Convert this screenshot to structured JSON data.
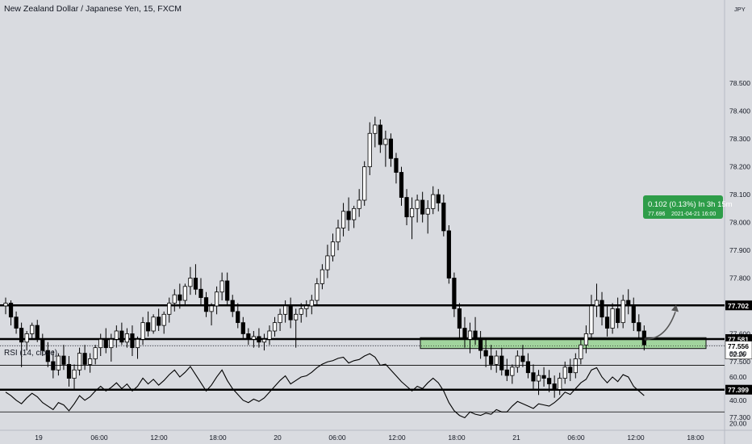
{
  "header": {
    "title": "New Zealand Dollar / Japanese Yen, 15, FXCM",
    "currency": "JPY"
  },
  "rsi": {
    "title": "RSI (14, close)",
    "ticks": [
      "80.00",
      "60.00",
      "40.00",
      "20.00"
    ]
  },
  "price_axis": {
    "ticks": [
      "78.500",
      "78.400",
      "78.300",
      "78.200",
      "78.100",
      "78.000",
      "77.900",
      "77.800",
      "77.600",
      "77.500",
      "77.300"
    ]
  },
  "time_axis": {
    "ticks": [
      "19",
      "06:00",
      "12:00",
      "18:00",
      "20",
      "06:00",
      "12:00",
      "18:00",
      "21",
      "06:00",
      "12:00",
      "18:00"
    ]
  },
  "levels": [
    {
      "name": "resistance-level",
      "value": 77.702,
      "label": "77.702"
    },
    {
      "name": "mid-level",
      "value": 77.581,
      "label": "77.581"
    },
    {
      "name": "support-level",
      "value": 77.399,
      "label": "77.399"
    }
  ],
  "current_price": {
    "value": 77.556,
    "label": "77.556",
    "countdown": "02:26"
  },
  "zone": {
    "from": 77.547,
    "to": 77.586
  },
  "projection": {
    "line1": "0.102 (0.13%) In 3h 15m",
    "line2a": "77.696",
    "line2b": "2021-04-21  16:00",
    "color": "#2e9d49"
  },
  "colors": {
    "background": "#d9dbe0",
    "candle_up": "#ffffff",
    "candle_down": "#000000",
    "zone_fill": "#9fd49a",
    "level_line": "#000000"
  },
  "chart_data": {
    "type": "candlestick",
    "interval": "15",
    "ylim": [
      77.26,
      78.52
    ],
    "rsi_ylim": [
      15,
      85
    ],
    "rsi_bands": [
      70,
      30
    ],
    "x_ticks": [
      "19",
      "06:00",
      "12:00",
      "18:00",
      "20",
      "06:00",
      "12:00",
      "18:00",
      "21",
      "06:00",
      "12:00",
      "18:00"
    ],
    "series": [
      {
        "values": [
          [
            77.7,
            77.73,
            77.67,
            77.71
          ],
          [
            77.71,
            77.72,
            77.63,
            77.66
          ],
          [
            77.66,
            77.68,
            77.6,
            77.62
          ],
          [
            77.62,
            77.64,
            77.48,
            77.57
          ],
          [
            77.57,
            77.61,
            77.54,
            77.6
          ],
          [
            77.6,
            77.64,
            77.58,
            77.63
          ],
          [
            77.63,
            77.65,
            77.57,
            77.58
          ],
          [
            77.58,
            77.6,
            77.52,
            77.54
          ],
          [
            77.54,
            77.57,
            77.48,
            77.5
          ],
          [
            77.5,
            77.54,
            77.44,
            77.47
          ],
          [
            77.47,
            77.53,
            77.45,
            77.52
          ],
          [
            77.52,
            77.56,
            77.47,
            77.49
          ],
          [
            77.49,
            77.52,
            77.41,
            77.44
          ],
          [
            77.44,
            77.49,
            77.4,
            77.47
          ],
          [
            77.47,
            77.55,
            77.45,
            77.53
          ],
          [
            77.53,
            77.56,
            77.47,
            77.49
          ],
          [
            77.49,
            77.53,
            77.46,
            77.51
          ],
          [
            77.51,
            77.56,
            77.49,
            77.55
          ],
          [
            77.55,
            77.6,
            77.52,
            77.58
          ],
          [
            77.58,
            77.62,
            77.53,
            77.55
          ],
          [
            77.55,
            77.6,
            77.5,
            77.58
          ],
          [
            77.58,
            77.63,
            77.55,
            77.61
          ],
          [
            77.61,
            77.64,
            77.56,
            77.57
          ],
          [
            77.57,
            77.62,
            77.55,
            77.6
          ],
          [
            77.6,
            77.63,
            77.52,
            77.55
          ],
          [
            77.55,
            77.59,
            77.51,
            77.58
          ],
          [
            77.58,
            77.66,
            77.56,
            77.64
          ],
          [
            77.64,
            77.68,
            77.59,
            77.61
          ],
          [
            77.61,
            77.67,
            77.6,
            77.66
          ],
          [
            77.66,
            77.69,
            77.61,
            77.63
          ],
          [
            77.63,
            77.68,
            77.6,
            77.67
          ],
          [
            77.67,
            77.73,
            77.64,
            77.71
          ],
          [
            77.71,
            77.76,
            77.68,
            77.74
          ],
          [
            77.74,
            77.78,
            77.69,
            77.72
          ],
          [
            77.72,
            77.78,
            77.7,
            77.77
          ],
          [
            77.77,
            77.84,
            77.74,
            77.8
          ],
          [
            77.8,
            77.85,
            77.74,
            77.76
          ],
          [
            77.76,
            77.8,
            77.7,
            77.73
          ],
          [
            77.73,
            77.75,
            77.66,
            77.68
          ],
          [
            77.68,
            77.71,
            77.63,
            77.7
          ],
          [
            77.7,
            77.77,
            77.67,
            77.75
          ],
          [
            77.75,
            77.82,
            77.72,
            77.79
          ],
          [
            77.79,
            77.82,
            77.7,
            77.72
          ],
          [
            77.72,
            77.74,
            77.66,
            77.68
          ],
          [
            77.68,
            77.71,
            77.62,
            77.64
          ],
          [
            77.64,
            77.66,
            77.58,
            77.6
          ],
          [
            77.6,
            77.62,
            77.56,
            77.58
          ],
          [
            77.58,
            77.61,
            77.55,
            77.59
          ],
          [
            77.59,
            77.62,
            77.55,
            77.57
          ],
          [
            77.57,
            77.6,
            77.54,
            77.58
          ],
          [
            77.58,
            77.63,
            77.56,
            77.61
          ],
          [
            77.61,
            77.66,
            77.59,
            77.64
          ],
          [
            77.64,
            77.69,
            77.61,
            77.67
          ],
          [
            77.67,
            77.72,
            77.64,
            77.7
          ],
          [
            77.7,
            77.73,
            77.62,
            77.65
          ],
          [
            77.65,
            77.69,
            77.55,
            77.67
          ],
          [
            77.67,
            77.71,
            77.64,
            77.69
          ],
          [
            77.69,
            77.72,
            77.66,
            77.7
          ],
          [
            77.7,
            77.74,
            77.67,
            77.72
          ],
          [
            77.72,
            77.8,
            77.7,
            77.78
          ],
          [
            77.78,
            77.85,
            77.76,
            77.83
          ],
          [
            77.83,
            77.92,
            77.8,
            77.88
          ],
          [
            77.88,
            77.96,
            77.86,
            77.93
          ],
          [
            77.93,
            78.01,
            77.9,
            77.98
          ],
          [
            77.98,
            78.07,
            77.95,
            78.04
          ],
          [
            78.04,
            78.09,
            77.97,
            78.01
          ],
          [
            78.01,
            78.06,
            77.98,
            78.05
          ],
          [
            78.05,
            78.12,
            78.02,
            78.08
          ],
          [
            78.08,
            78.22,
            78.06,
            78.2
          ],
          [
            78.2,
            78.36,
            78.17,
            78.32
          ],
          [
            78.32,
            78.38,
            78.27,
            78.35
          ],
          [
            78.35,
            78.37,
            78.25,
            78.28
          ],
          [
            78.28,
            78.33,
            78.2,
            78.3
          ],
          [
            78.3,
            78.32,
            78.2,
            78.23
          ],
          [
            78.23,
            78.25,
            78.14,
            78.18
          ],
          [
            78.18,
            78.2,
            78.06,
            78.09
          ],
          [
            78.09,
            78.12,
            77.99,
            78.02
          ],
          [
            78.02,
            78.09,
            77.94,
            78.05
          ],
          [
            78.05,
            78.1,
            78.0,
            78.08
          ],
          [
            78.08,
            78.11,
            78.0,
            78.03
          ],
          [
            78.03,
            78.08,
            77.96,
            78.05
          ],
          [
            78.05,
            78.13,
            78.03,
            78.1
          ],
          [
            78.1,
            78.12,
            78.04,
            78.07
          ],
          [
            78.07,
            78.1,
            77.95,
            77.97
          ],
          [
            77.97,
            77.99,
            77.78,
            77.8
          ],
          [
            77.8,
            77.82,
            77.66,
            77.69
          ],
          [
            77.69,
            77.71,
            77.58,
            77.62
          ],
          [
            77.62,
            77.66,
            77.55,
            77.58
          ],
          [
            77.58,
            77.64,
            77.53,
            77.61
          ],
          [
            77.61,
            77.66,
            77.56,
            77.58
          ],
          [
            77.58,
            77.61,
            77.51,
            77.54
          ],
          [
            77.54,
            77.58,
            77.48,
            77.52
          ],
          [
            77.52,
            77.56,
            77.47,
            77.49
          ],
          [
            77.49,
            77.54,
            77.46,
            77.52
          ],
          [
            77.52,
            77.55,
            77.45,
            77.47
          ],
          [
            77.47,
            77.51,
            77.43,
            77.45
          ],
          [
            77.45,
            77.49,
            77.42,
            77.48
          ],
          [
            77.48,
            77.54,
            77.46,
            77.52
          ],
          [
            77.52,
            77.56,
            77.48,
            77.5
          ],
          [
            77.5,
            77.53,
            77.44,
            77.46
          ],
          [
            77.46,
            77.49,
            77.4,
            77.43
          ],
          [
            77.43,
            77.47,
            77.38,
            77.45
          ],
          [
            77.45,
            77.48,
            77.41,
            77.44
          ],
          [
            77.44,
            77.47,
            77.39,
            77.42
          ],
          [
            77.42,
            77.45,
            77.37,
            77.4
          ],
          [
            77.4,
            77.46,
            77.38,
            77.44
          ],
          [
            77.44,
            77.5,
            77.42,
            77.48
          ],
          [
            77.48,
            77.51,
            77.43,
            77.46
          ],
          [
            77.46,
            77.53,
            77.44,
            77.51
          ],
          [
            77.51,
            77.58,
            77.49,
            77.56
          ],
          [
            77.56,
            77.63,
            77.53,
            77.6
          ],
          [
            77.6,
            77.74,
            77.58,
            77.7
          ],
          [
            77.7,
            77.78,
            77.66,
            77.72
          ],
          [
            77.72,
            77.75,
            77.63,
            77.66
          ],
          [
            77.66,
            77.7,
            77.59,
            77.62
          ],
          [
            77.62,
            77.71,
            77.6,
            77.69
          ],
          [
            77.69,
            77.73,
            77.62,
            77.64
          ],
          [
            77.64,
            77.74,
            77.62,
            77.72
          ],
          [
            77.72,
            77.76,
            77.67,
            77.7
          ],
          [
            77.7,
            77.73,
            77.61,
            77.64
          ],
          [
            77.64,
            77.67,
            77.58,
            77.61
          ],
          [
            77.61,
            77.63,
            77.54,
            77.56
          ]
        ]
      }
    ],
    "rsi_values": [
      47,
      44,
      40,
      37,
      42,
      46,
      43,
      38,
      35,
      32,
      38,
      36,
      31,
      37,
      44,
      40,
      43,
      48,
      52,
      48,
      51,
      55,
      50,
      54,
      48,
      52,
      59,
      54,
      58,
      53,
      57,
      62,
      66,
      60,
      64,
      69,
      62,
      55,
      48,
      53,
      60,
      66,
      57,
      50,
      45,
      40,
      38,
      41,
      39,
      42,
      47,
      52,
      57,
      61,
      54,
      57,
      60,
      61,
      64,
      68,
      71,
      73,
      74,
      76,
      77,
      72,
      74,
      75,
      78,
      80,
      77,
      70,
      71,
      66,
      61,
      56,
      52,
      48,
      52,
      50,
      55,
      59,
      55,
      48,
      38,
      31,
      27,
      25,
      30,
      28,
      27,
      29,
      28,
      32,
      30,
      30,
      35,
      39,
      37,
      35,
      33,
      37,
      36,
      35,
      38,
      42,
      47,
      45,
      50,
      55,
      58,
      66,
      68,
      60,
      55,
      60,
      56,
      62,
      60,
      52,
      48,
      44
    ]
  }
}
